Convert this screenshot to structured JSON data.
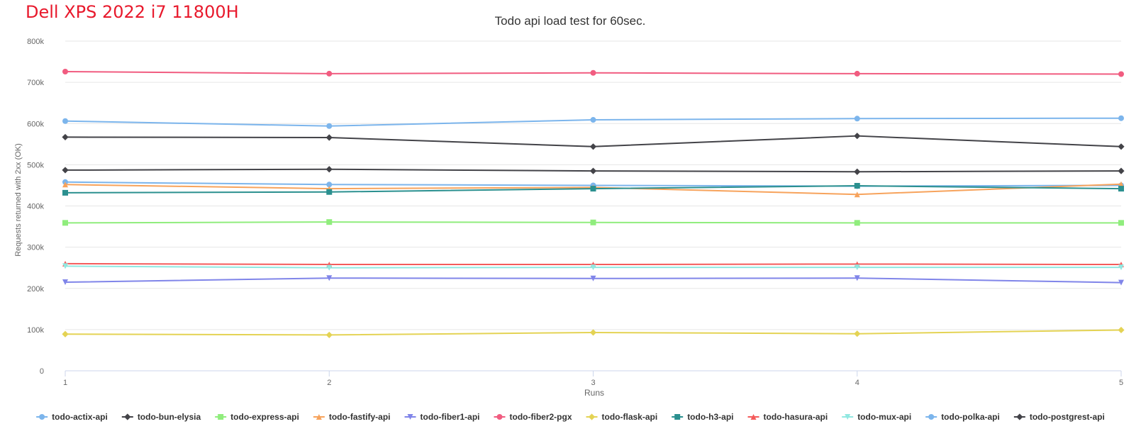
{
  "header": {
    "device_title": "Dell XPS 2022 i7 11800H"
  },
  "chart_data": {
    "type": "line",
    "title": "Todo api load test for 60sec.",
    "xlabel": "Runs",
    "ylabel": "Requests returned with 2xx (OK)",
    "x": [
      1,
      2,
      3,
      4,
      5
    ],
    "x_tick_labels": [
      "1",
      "2",
      "3",
      "4",
      "5"
    ],
    "ylim": [
      0,
      800000
    ],
    "y_ticks": [
      0,
      100000,
      200000,
      300000,
      400000,
      500000,
      600000,
      700000,
      800000
    ],
    "y_tick_labels": [
      "0",
      "100k",
      "200k",
      "300k",
      "400k",
      "500k",
      "600k",
      "700k",
      "800k"
    ],
    "grid": true,
    "legend_position": "bottom",
    "series": [
      {
        "name": "todo-actix-api",
        "color": "#7cb5ec",
        "marker": "circle",
        "values": [
          458000,
          452000,
          450000,
          448000,
          450000
        ]
      },
      {
        "name": "todo-bun-elysia",
        "color": "#434348",
        "marker": "diamond",
        "values": [
          487000,
          489000,
          485000,
          483000,
          485000
        ]
      },
      {
        "name": "todo-express-api",
        "color": "#90ed7d",
        "marker": "square",
        "values": [
          359000,
          361000,
          360000,
          359000,
          359000
        ]
      },
      {
        "name": "todo-fastify-api",
        "color": "#f7a35c",
        "marker": "triangle",
        "values": [
          452000,
          442000,
          445000,
          428000,
          453000
        ]
      },
      {
        "name": "todo-fiber1-api",
        "color": "#8085e9",
        "marker": "triangle-down",
        "values": [
          215000,
          225000,
          224000,
          225000,
          214000
        ]
      },
      {
        "name": "todo-fiber2-pgx",
        "color": "#f15c80",
        "marker": "circle",
        "values": [
          726000,
          721000,
          723000,
          721000,
          720000
        ]
      },
      {
        "name": "todo-flask-api",
        "color": "#e4d354",
        "marker": "diamond",
        "values": [
          89000,
          87000,
          93000,
          90000,
          99000
        ]
      },
      {
        "name": "todo-h3-api",
        "color": "#2b908f",
        "marker": "square",
        "values": [
          432000,
          434000,
          442000,
          449000,
          442000
        ]
      },
      {
        "name": "todo-hasura-api",
        "color": "#f45b5b",
        "marker": "triangle",
        "values": [
          260000,
          258000,
          258000,
          259000,
          258000
        ]
      },
      {
        "name": "todo-mux-api",
        "color": "#91e8e1",
        "marker": "triangle-down",
        "values": [
          254000,
          250000,
          251000,
          251000,
          251000
        ]
      },
      {
        "name": "todo-polka-api",
        "color": "#7cb5ec",
        "marker": "circle",
        "values": [
          606000,
          594000,
          609000,
          612000,
          613000
        ]
      },
      {
        "name": "todo-postgrest-api",
        "color": "#434348",
        "marker": "diamond",
        "values": [
          567000,
          566000,
          544000,
          570000,
          544000
        ]
      }
    ]
  }
}
